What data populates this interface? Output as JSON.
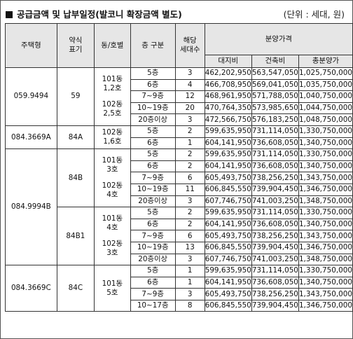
{
  "title": "공급금액 및 납부일정(발코니 확장금액 별도)",
  "unit": "(단위 : 세대, 원)",
  "headers": {
    "type": "주택형",
    "abbr_1": "약식",
    "abbr_2": "표기",
    "dong": "동/호별",
    "floor": "층 구분",
    "units_1": "해당",
    "units_2": "세대수",
    "price": "분양가격",
    "land": "대지비",
    "building": "건축비",
    "total": "총분양가"
  },
  "groups": [
    {
      "type": "059.9494",
      "abbr": "59",
      "rows": [
        [
          "5층",
          "3",
          "462,202,950",
          "563,547,050",
          "1,025,750,000"
        ],
        [
          "6층",
          "4",
          "466,708,950",
          "569,041,050",
          "1,035,750,000"
        ],
        [
          "7~9층",
          "12",
          "468,961,950",
          "571,788,050",
          "1,040,750,000"
        ],
        [
          "10~19층",
          "20",
          "470,764,350",
          "573,985,650",
          "1,044,750,000"
        ],
        [
          "20층이상",
          "3",
          "472,566,750",
          "576,183,250",
          "1,048,750,000"
        ]
      ],
      "dong": [
        {
          "line1": "101동",
          "line2": "1,2호"
        },
        {
          "line1": "102동",
          "line2": "2,5호"
        }
      ]
    },
    {
      "type": "084.3669A",
      "abbr": "84A",
      "rows": [
        [
          "5층",
          "2",
          "599,635,950",
          "731,114,050",
          "1,330,750,000"
        ],
        [
          "6층",
          "1",
          "604,141,950",
          "736,608,050",
          "1,340,750,000"
        ]
      ],
      "dong": [
        {
          "line1": "102동",
          "line2": "1,6호"
        }
      ]
    },
    {
      "type": "084.9994B",
      "abbr": "84B",
      "rows": [
        [
          "5층",
          "2",
          "599,635,950",
          "731,114,050",
          "1,330,750,000"
        ],
        [
          "6층",
          "2",
          "604,141,950",
          "736,608,050",
          "1,340,750,000"
        ],
        [
          "7~9층",
          "6",
          "605,493,750",
          "738,256,250",
          "1,343,750,000"
        ],
        [
          "10~19층",
          "11",
          "606,845,550",
          "739,904,450",
          "1,346,750,000"
        ],
        [
          "20층이상",
          "3",
          "607,746,750",
          "741,003,250",
          "1,348,750,000"
        ]
      ],
      "dong": [
        {
          "line1": "101동",
          "line2": "3호"
        },
        {
          "line1": "102동",
          "line2": "4호"
        }
      ]
    },
    {
      "abbr": "84B1",
      "rows": [
        [
          "5층",
          "2",
          "599,635,950",
          "731,114,050",
          "1,330,750,000"
        ],
        [
          "6층",
          "2",
          "604,141,950",
          "736,608,050",
          "1,340,750,000"
        ],
        [
          "7~9층",
          "6",
          "605,493,750",
          "738,256,250",
          "1,343,750,000"
        ],
        [
          "10~19층",
          "13",
          "606,845,550",
          "739,904,450",
          "1,346,750,000"
        ],
        [
          "20층이상",
          "3",
          "607,746,750",
          "741,003,250",
          "1,348,750,000"
        ]
      ],
      "dong": [
        {
          "line1": "101동",
          "line2": "4호"
        },
        {
          "line1": "102동",
          "line2": "3호"
        }
      ]
    },
    {
      "type": "084.3669C",
      "abbr": "84C",
      "rows": [
        [
          "5층",
          "1",
          "599,635,950",
          "731,114,050",
          "1,330,750,000"
        ],
        [
          "6층",
          "1",
          "604,141,950",
          "736,608,050",
          "1,340,750,000"
        ],
        [
          "7~9층",
          "3",
          "605,493,750",
          "738,256,250",
          "1,343,750,000"
        ],
        [
          "10~17층",
          "8",
          "606,845,550",
          "739,904,450",
          "1,346,750,000"
        ]
      ],
      "dong": [
        {
          "line1": "101동",
          "line2": "5호"
        }
      ]
    }
  ]
}
